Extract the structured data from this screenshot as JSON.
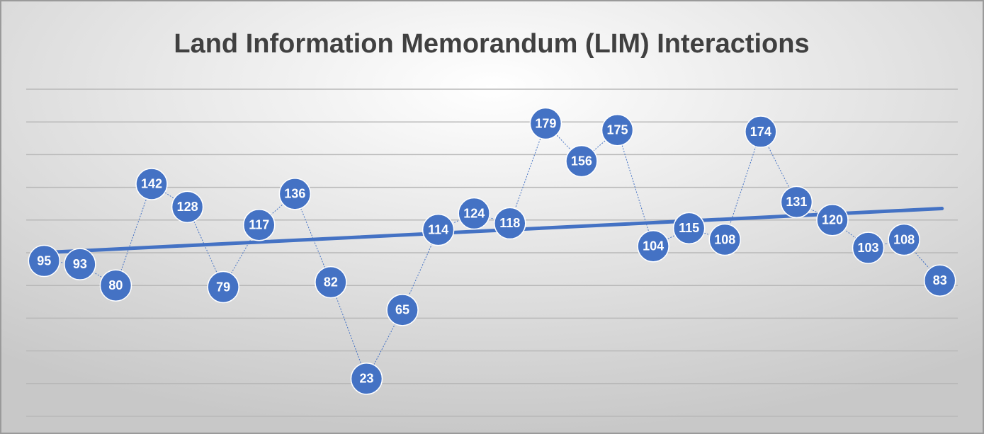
{
  "chart_data": {
    "type": "line",
    "title": "Land Information Memorandum (LIM) Interactions",
    "categories": [
      null,
      null,
      null,
      null,
      null,
      null,
      null,
      null,
      null,
      null,
      null,
      null,
      null,
      null,
      null,
      null,
      null,
      null,
      null,
      null,
      null,
      null,
      null,
      null,
      null,
      null
    ],
    "values": [
      95,
      93,
      80,
      142,
      128,
      79,
      117,
      136,
      82,
      23,
      65,
      114,
      124,
      118,
      179,
      156,
      175,
      104,
      115,
      108,
      174,
      131,
      120,
      103,
      108,
      83
    ],
    "color": "#4472c4",
    "trendline": "linear",
    "ylim": [
      0,
      200
    ],
    "yticks": [
      0,
      20,
      40,
      60,
      80,
      100,
      120,
      140,
      160,
      180,
      200
    ],
    "grid": true
  }
}
